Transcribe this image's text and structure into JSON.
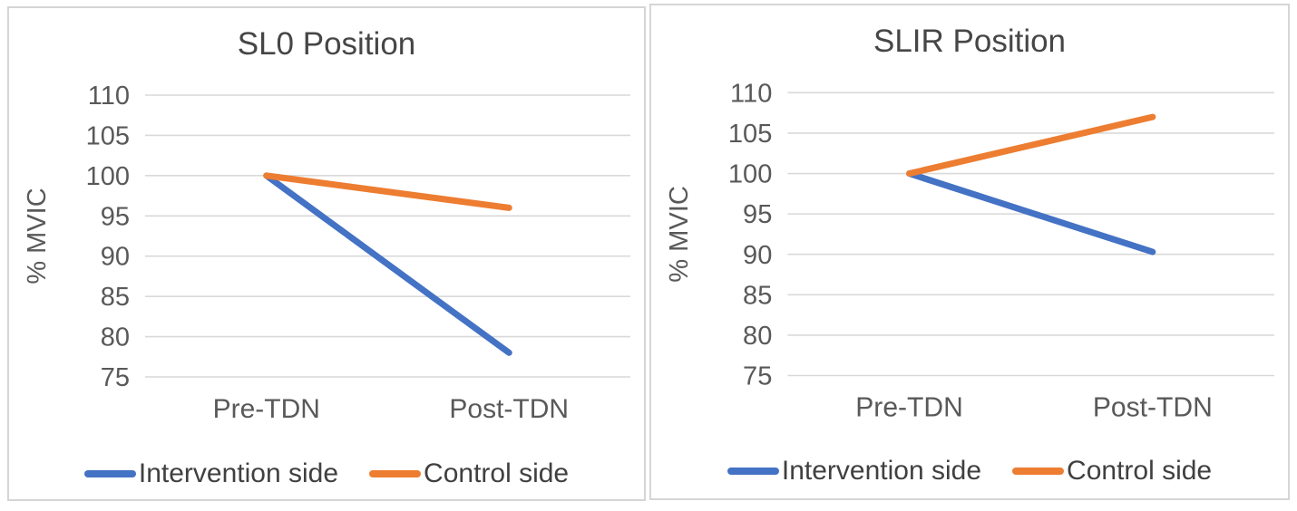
{
  "theme": {
    "background": "#ffffff",
    "panel_border": "#d5d5d5",
    "grid_color": "#d9d9d9",
    "title_color": "#464646",
    "axis_text_color": "#595959",
    "legend_text_color": "#404040",
    "series_blue": "#4472C4",
    "series_orange": "#ED7D31"
  },
  "chart_data": [
    {
      "type": "line",
      "title": "SL0 Position",
      "ylabel": "% MVIC",
      "xlabel": "",
      "categories": [
        "Pre-TDN",
        "Post-TDN"
      ],
      "series": [
        {
          "name": "Intervention side",
          "color": "#4472C4",
          "values": [
            100,
            78
          ]
        },
        {
          "name": "Control side",
          "color": "#ED7D31",
          "values": [
            100,
            96
          ]
        }
      ],
      "ylim": [
        75,
        110
      ],
      "yticks": [
        110,
        105,
        100,
        95,
        90,
        85,
        80,
        75
      ],
      "grid": true,
      "legend_position": "bottom"
    },
    {
      "type": "line",
      "title": "SLIR Position",
      "ylabel": "% MVIC",
      "xlabel": "",
      "categories": [
        "Pre-TDN",
        "Post-TDN"
      ],
      "series": [
        {
          "name": "Intervention side",
          "color": "#4472C4",
          "values": [
            100,
            90.3
          ]
        },
        {
          "name": "Control side",
          "color": "#ED7D31",
          "values": [
            100,
            107
          ]
        }
      ],
      "ylim": [
        75,
        110
      ],
      "yticks": [
        110,
        105,
        100,
        95,
        90,
        85,
        80,
        75
      ],
      "grid": true,
      "legend_position": "bottom"
    }
  ]
}
